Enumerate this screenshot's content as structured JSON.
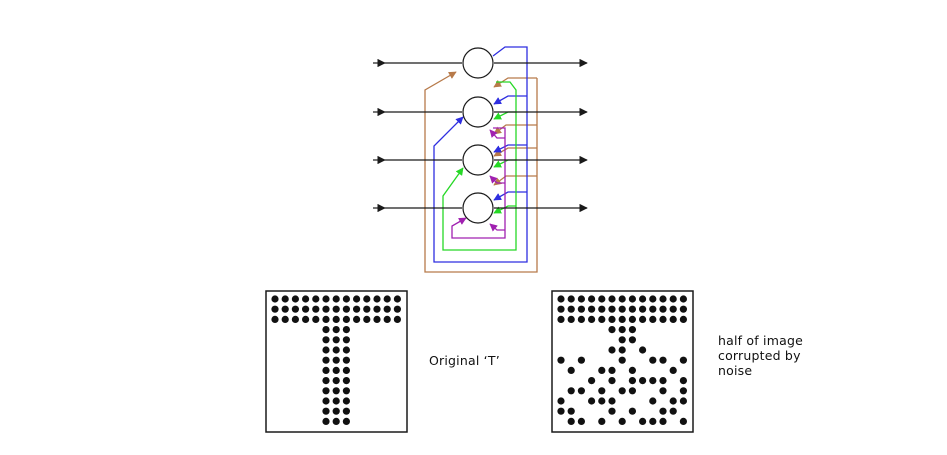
{
  "network": {
    "neuron_count": 4,
    "feedback_colors": [
      "#b77a4a",
      "#2e2ee0",
      "#26d826",
      "#a020b0"
    ],
    "line_color": "#1a1a1a"
  },
  "patterns": {
    "original": {
      "caption": "Original ‘T’",
      "grid": [
        "1111111111111",
        "1111111111111",
        "1111111111111",
        "0000011100000",
        "0000011100000",
        "0000011100000",
        "0000011100000",
        "0000011100000",
        "0000011100000",
        "0000011100000",
        "0000011100000",
        "0000011100000",
        "0000011100000"
      ]
    },
    "corrupted": {
      "caption_lines": [
        "half of image",
        "corrupted by",
        "noise"
      ],
      "grid": [
        "1111111111111",
        "1111111111111",
        "1111111111111",
        "0000011100000",
        "0000001100000",
        "0000011010000",
        "1010001001101",
        "0100110100010",
        "0001010111101",
        "0110101100101",
        "1001110001011",
        "1100010100110",
        "0110101011101"
      ]
    }
  }
}
